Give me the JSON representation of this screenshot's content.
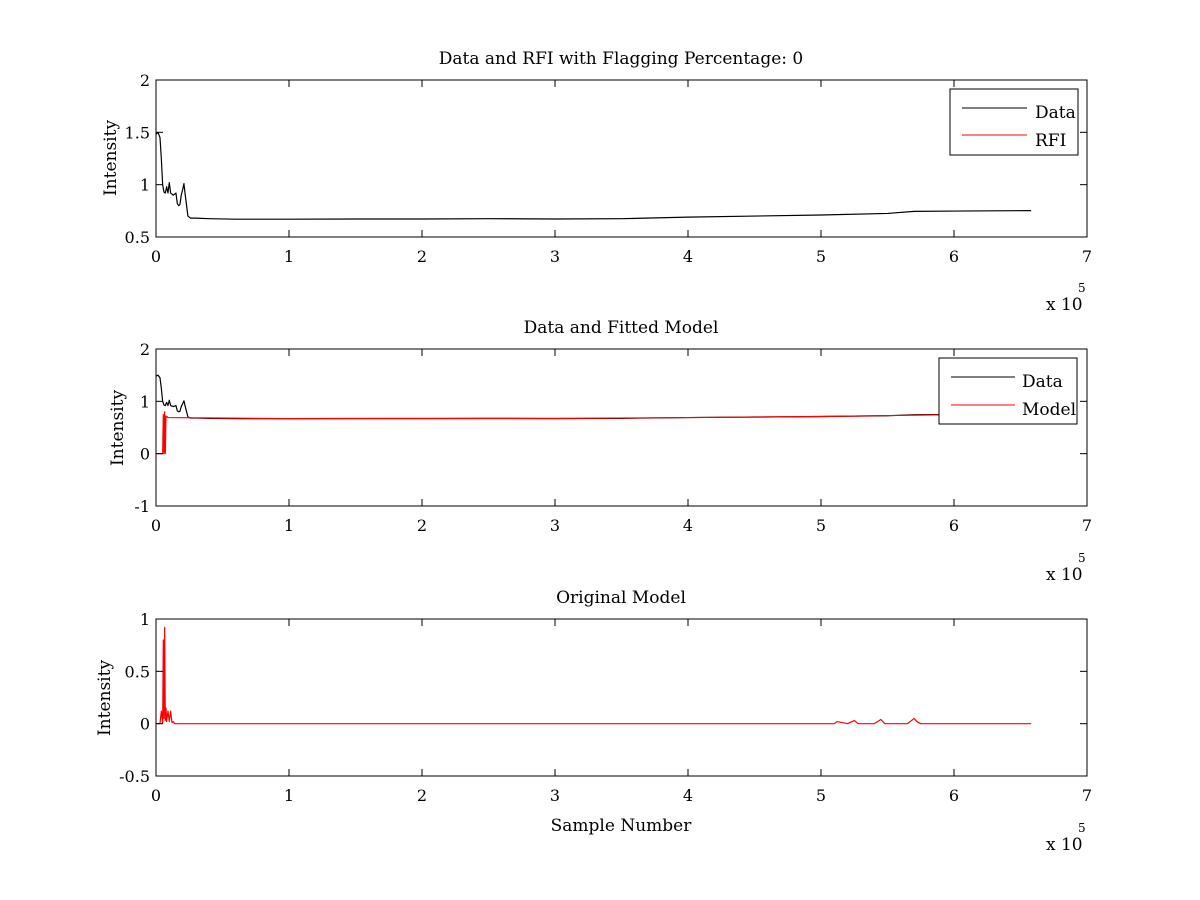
{
  "chart_data": [
    {
      "type": "line",
      "title": "Data and RFI with Flagging Percentage: 0",
      "xlabel": "",
      "ylabel": "Intensity",
      "xlim": [
        0,
        700000
      ],
      "ylim": [
        0.5,
        2
      ],
      "xticks": [
        0,
        100000,
        200000,
        300000,
        400000,
        500000,
        600000,
        700000
      ],
      "xtick_labels": [
        "0",
        "1",
        "2",
        "3",
        "4",
        "5",
        "6",
        "7"
      ],
      "yticks": [
        0.5,
        1,
        1.5,
        2
      ],
      "ytick_labels": [
        "0.5",
        "1",
        "1.5",
        "2"
      ],
      "x_exponent_text": "x 10",
      "x_exponent_power": "5",
      "legend": "top-right",
      "series": [
        {
          "name": "Data",
          "color": "#000000",
          "x": [
            0,
            1500,
            3000,
            4000,
            5000,
            6000,
            7000,
            8000,
            9000,
            10000,
            11000,
            13000,
            15000,
            16000,
            17000,
            18000,
            19000,
            20000,
            21000,
            22000,
            24000,
            26000,
            30000,
            40000,
            60000,
            100000,
            150000,
            200000,
            250000,
            300000,
            350000,
            400000,
            450000,
            500000,
            550000,
            570000,
            600000,
            658000
          ],
          "y": [
            1.48,
            1.5,
            1.45,
            1.25,
            1.0,
            0.93,
            0.92,
            0.98,
            0.92,
            1.02,
            0.92,
            0.9,
            0.92,
            0.82,
            0.8,
            0.81,
            0.9,
            0.95,
            1.01,
            0.9,
            0.7,
            0.68,
            0.68,
            0.675,
            0.67,
            0.67,
            0.672,
            0.672,
            0.675,
            0.672,
            0.675,
            0.69,
            0.7,
            0.71,
            0.725,
            0.745,
            0.748,
            0.752
          ]
        },
        {
          "name": "RFI",
          "color": "#ff0000",
          "x": [],
          "y": []
        }
      ]
    },
    {
      "type": "line",
      "title": "Data and Fitted Model",
      "xlabel": "",
      "ylabel": "Intensity",
      "xlim": [
        0,
        700000
      ],
      "ylim": [
        -1,
        2
      ],
      "xticks": [
        0,
        100000,
        200000,
        300000,
        400000,
        500000,
        600000,
        700000
      ],
      "xtick_labels": [
        "0",
        "1",
        "2",
        "3",
        "4",
        "5",
        "6",
        "7"
      ],
      "yticks": [
        -1,
        0,
        1,
        2
      ],
      "ytick_labels": [
        "-1",
        "0",
        "1",
        "2"
      ],
      "x_exponent_text": "x 10",
      "x_exponent_power": "5",
      "legend": "top-right",
      "series": [
        {
          "name": "Data",
          "color": "#000000",
          "x": [
            0,
            1500,
            3000,
            4000,
            5000,
            6000,
            7000,
            8000,
            9000,
            10000,
            11000,
            13000,
            15000,
            16000,
            17000,
            18000,
            19000,
            20000,
            21000,
            22000,
            24000,
            26000,
            30000,
            40000,
            60000,
            100000,
            150000,
            200000,
            250000,
            300000,
            350000,
            400000,
            450000,
            500000,
            550000,
            570000,
            600000,
            658000
          ],
          "y": [
            1.48,
            1.5,
            1.45,
            1.25,
            1.0,
            0.93,
            0.92,
            0.98,
            0.92,
            1.02,
            0.92,
            0.9,
            0.92,
            0.82,
            0.8,
            0.81,
            0.9,
            0.95,
            1.01,
            0.9,
            0.7,
            0.68,
            0.68,
            0.675,
            0.67,
            0.67,
            0.672,
            0.672,
            0.675,
            0.672,
            0.675,
            0.69,
            0.7,
            0.71,
            0.725,
            0.745,
            0.748,
            0.752
          ]
        },
        {
          "name": "Model",
          "color": "#ff0000",
          "x": [
            0,
            5000,
            5500,
            6000,
            6500,
            7000,
            7500,
            8000,
            8500,
            9000,
            100000,
            200000,
            300000,
            400000,
            500000,
            600000,
            658000
          ],
          "y": [
            0,
            0,
            0.75,
            0,
            0.8,
            0,
            0.72,
            0.71,
            0.7,
            0.69,
            0.67,
            0.672,
            0.672,
            0.69,
            0.71,
            0.745,
            0.752
          ]
        }
      ]
    },
    {
      "type": "line",
      "title": "Original Model",
      "xlabel": "Sample Number",
      "ylabel": "Intensity",
      "xlim": [
        0,
        700000
      ],
      "ylim": [
        -0.5,
        1
      ],
      "xticks": [
        0,
        100000,
        200000,
        300000,
        400000,
        500000,
        600000,
        700000
      ],
      "xtick_labels": [
        "0",
        "1",
        "2",
        "3",
        "4",
        "5",
        "6",
        "7"
      ],
      "yticks": [
        -0.5,
        0,
        0.5,
        1
      ],
      "ytick_labels": [
        "-0.5",
        "0",
        "0.5",
        "1"
      ],
      "x_exponent_text": "x 10",
      "x_exponent_power": "5",
      "legend": "none",
      "series": [
        {
          "name": "",
          "color": "#ff0000",
          "x": [
            0,
            3000,
            4000,
            5000,
            5500,
            6000,
            6500,
            7000,
            7500,
            8000,
            9000,
            10000,
            11000,
            12000,
            13000,
            14000,
            50000,
            150000,
            250000,
            350000,
            400000,
            450000,
            500000,
            510000,
            512000,
            520000,
            525000,
            528000,
            540000,
            545000,
            548000,
            555000,
            565000,
            570000,
            572000,
            575000,
            580000,
            658000
          ],
          "y": [
            0,
            0,
            0.12,
            0,
            0.8,
            0.05,
            0.92,
            0.03,
            0.15,
            0.02,
            0.12,
            0.02,
            0.12,
            0.01,
            0.02,
            0,
            0,
            0,
            0,
            0,
            0,
            0,
            0,
            0,
            0.02,
            0,
            0.03,
            0,
            0,
            0.04,
            0,
            0,
            0,
            0.05,
            0.02,
            0,
            0,
            0
          ]
        }
      ]
    }
  ]
}
